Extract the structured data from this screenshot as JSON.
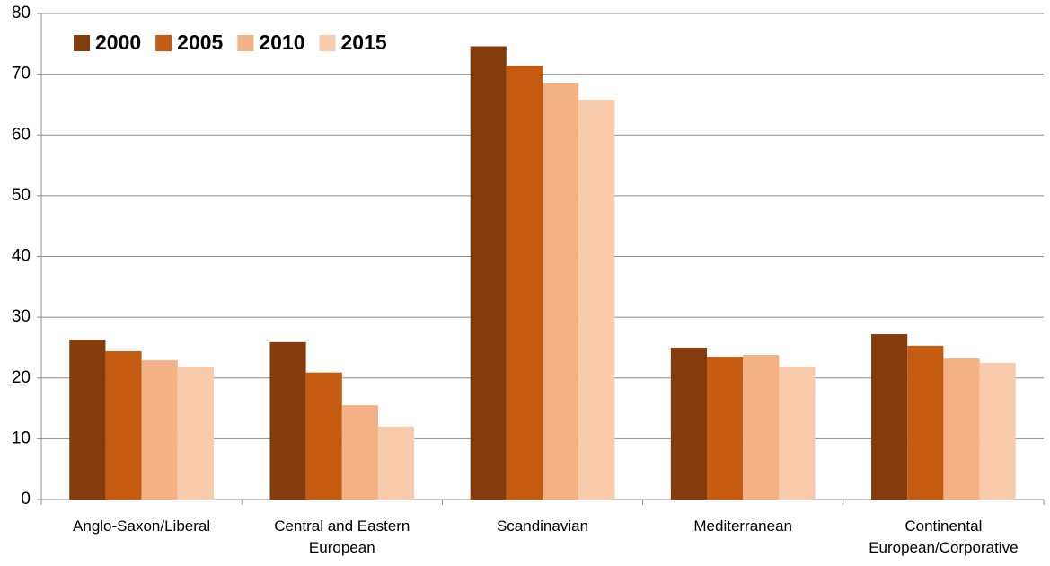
{
  "chart_data": {
    "type": "bar",
    "categories": [
      "Anglo-Saxon/Liberal",
      "Central and Eastern European",
      "Scandinavian",
      "Mediterranean",
      "Continental European/Corporative"
    ],
    "series": [
      {
        "name": "2000",
        "color": "#843c0c",
        "values": [
          26.3,
          25.9,
          74.6,
          25.0,
          27.2
        ]
      },
      {
        "name": "2005",
        "color": "#c55a11",
        "values": [
          24.4,
          20.9,
          71.4,
          23.5,
          25.3
        ]
      },
      {
        "name": "2010",
        "color": "#f4b183",
        "values": [
          22.9,
          15.5,
          68.6,
          23.8,
          23.2
        ]
      },
      {
        "name": "2015",
        "color": "#f8cbad",
        "values": [
          21.9,
          12.0,
          65.8,
          21.9,
          22.5
        ]
      }
    ],
    "ylim": [
      0,
      80
    ],
    "yticks": [
      0,
      10,
      20,
      30,
      40,
      50,
      60,
      70,
      80
    ],
    "grid": true,
    "legend": "top-left"
  }
}
